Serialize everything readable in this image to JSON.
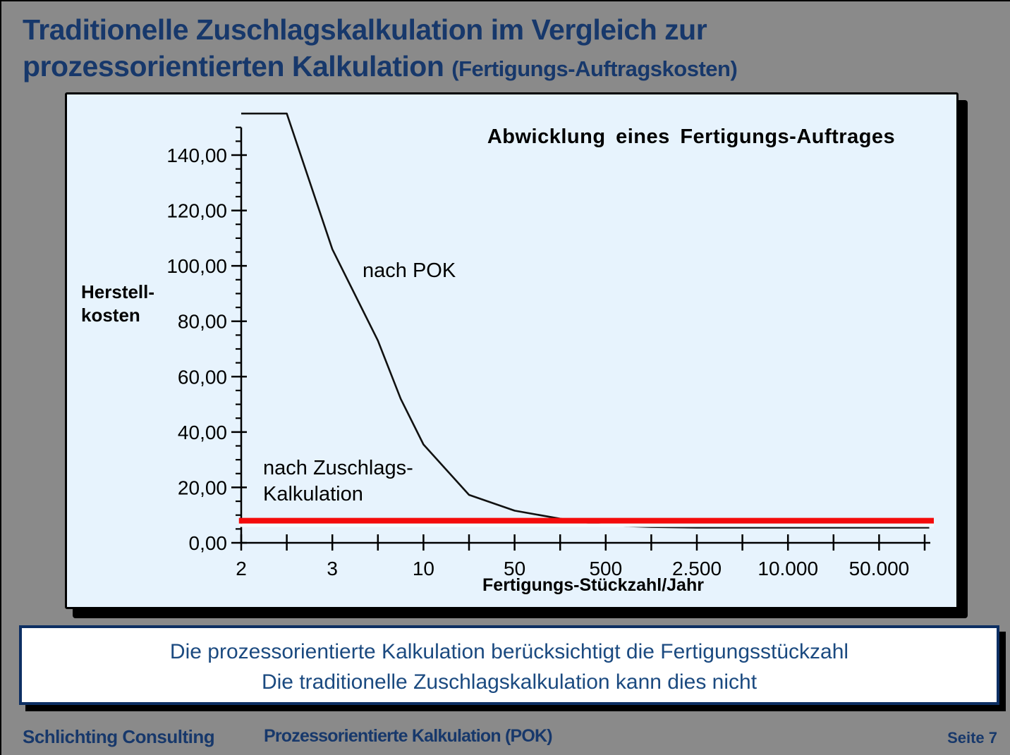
{
  "title": {
    "line1": "Traditionelle Zuschlagskalkulation im Vergleich zur",
    "line2_main": "prozessorientierten Kalkulation",
    "line2_paren": "(Fertigungs-Auftragskosten)"
  },
  "chart_data": {
    "type": "line",
    "title": "Abwicklung eines Fertigungs-Auftrages",
    "x_axis_label": "Fertigungs-Stückzahl/Jahr",
    "y_axis_label_lines": [
      "Herstell-",
      "kosten"
    ],
    "x_tick_labels": [
      "2",
      "3",
      "10",
      "50",
      "500",
      "2.500",
      "10.000",
      "50.000"
    ],
    "x_scale_note": "pseudo-log scale: 16 evenly spaced ticks, labels on every second tick",
    "y_tick_labels": [
      "0,00",
      "20,00",
      "40,00",
      "60,00",
      "80,00",
      "100,00",
      "120,00",
      "140,00"
    ],
    "y_major_step": 20,
    "y_minor_step": 5,
    "y_axis_top_value": 150,
    "ylim": [
      0,
      155
    ],
    "grid": false,
    "legend_position": "inline-annotations",
    "series": [
      {
        "name": "nach POK",
        "color": "#111111",
        "points_u_v": [
          [
            0,
            155
          ],
          [
            1,
            155
          ],
          [
            2,
            106
          ],
          [
            3,
            73
          ],
          [
            3.5,
            52
          ],
          [
            4,
            35.5
          ],
          [
            5,
            17.3
          ],
          [
            6,
            11.6
          ],
          [
            7,
            8.7
          ],
          [
            8,
            6.3
          ],
          [
            9,
            5.7
          ],
          [
            10,
            5.5
          ],
          [
            15.1,
            5.5
          ]
        ]
      },
      {
        "name": "nach Zuschlags-Kalkulation",
        "color": "#f40b0b",
        "value": 8
      }
    ],
    "annotations": {
      "pok_label": "nach POK",
      "zuschlag_label_line1": "nach Zuschlags-",
      "zuschlag_label_line2": "Kalkulation"
    }
  },
  "conclusion": {
    "line1": "Die prozessorientierte Kalkulation berücksichtigt die Fertigungsstückzahl",
    "line2": "Die traditionelle Zuschlagskalkulation kann dies nicht"
  },
  "footer": {
    "company": "Schlichting Consulting",
    "subtitle": "Prozessorientierte Kalkulation (POK)",
    "page": "Seite 7"
  },
  "colors": {
    "page_bg": "#8a8a8a",
    "navy_text": "#17386b",
    "chart_bg": "#e7f3fd",
    "pok_line": "#111111",
    "zuschlag_line": "#f40b0b",
    "box_border": "#0d2f63"
  }
}
